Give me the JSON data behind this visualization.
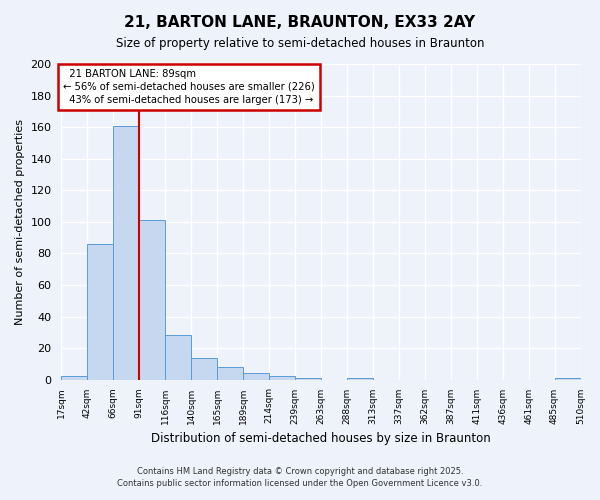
{
  "title": "21, BARTON LANE, BRAUNTON, EX33 2AY",
  "subtitle": "Size of property relative to semi-detached houses in Braunton",
  "bar_values": [
    2,
    86,
    161,
    101,
    28,
    14,
    8,
    4,
    2,
    1,
    0,
    1,
    0,
    0,
    0,
    0,
    0,
    0,
    0,
    1
  ],
  "bin_labels": [
    "17sqm",
    "42sqm",
    "66sqm",
    "91sqm",
    "116sqm",
    "140sqm",
    "165sqm",
    "189sqm",
    "214sqm",
    "239sqm",
    "263sqm",
    "288sqm",
    "313sqm",
    "337sqm",
    "362sqm",
    "387sqm",
    "411sqm",
    "436sqm",
    "461sqm",
    "485sqm",
    "510sqm"
  ],
  "bar_color": "#c5d8f0",
  "bar_edge_color": "#5b9bd5",
  "red_line_bin_index": 3,
  "property_label": "21 BARTON LANE: 89sqm",
  "pct_smaller": "56% of semi-detached houses are smaller (226)",
  "pct_larger": "43% of semi-detached houses are larger (173)",
  "xlabel": "Distribution of semi-detached houses by size in Braunton",
  "ylabel": "Number of semi-detached properties",
  "ylim": [
    0,
    200
  ],
  "yticks": [
    0,
    20,
    40,
    60,
    80,
    100,
    120,
    140,
    160,
    180,
    200
  ],
  "footnote1": "Contains HM Land Registry data © Crown copyright and database right 2025.",
  "footnote2": "Contains public sector information licensed under the Open Government Licence v3.0.",
  "bg_color": "#eef2fa",
  "grid_color": "#ffffff",
  "annotation_box_color": "#ffffff",
  "annotation_box_edge": "#cc0000"
}
